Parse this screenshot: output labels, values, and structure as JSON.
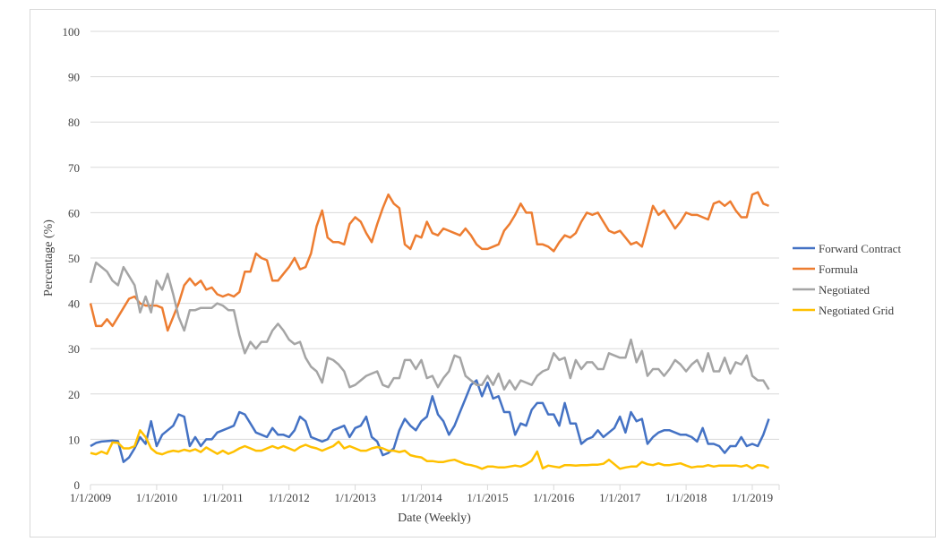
{
  "chart_data": {
    "type": "line",
    "xlabel": "Date (Weekly)",
    "ylabel": "Percentage (%)",
    "ylim": [
      0,
      100
    ],
    "yticks": [
      "0",
      "10",
      "20",
      "30",
      "40",
      "50",
      "60",
      "70",
      "80",
      "90",
      "100"
    ],
    "xticks": [
      "1/1/2009",
      "1/1/2010",
      "1/1/2011",
      "1/1/2012",
      "1/1/2013",
      "1/1/2014",
      "1/1/2015",
      "1/1/2016",
      "1/1/2017",
      "1/1/2018",
      "1/1/2019"
    ],
    "x_start": "2009-01",
    "x_step": "monthly (approx.)",
    "grid": true,
    "legend_position": "right",
    "series": [
      {
        "name": "Forward Contract",
        "color": "#4472C4",
        "values": [
          8.5,
          9.2,
          9.5,
          9.6,
          9.7,
          9.6,
          5,
          6,
          8,
          10.5,
          9,
          14,
          8.5,
          11,
          12,
          13,
          15.5,
          15,
          8.5,
          10.5,
          8.5,
          10,
          10,
          11.5,
          12,
          12.5,
          13,
          16,
          15.5,
          13.5,
          11.5,
          11,
          10.5,
          12.5,
          11,
          11,
          10.5,
          12,
          15,
          14,
          10.5,
          10,
          9.5,
          10,
          12,
          12.5,
          13,
          10.5,
          12.5,
          13,
          15,
          10.5,
          9.5,
          6.5,
          7,
          8,
          12,
          14.5,
          13,
          12,
          14,
          15,
          19.5,
          15.5,
          14,
          11,
          13,
          16,
          19,
          22,
          23,
          19.5,
          22.5,
          19,
          19.5,
          16,
          16,
          11,
          13.5,
          13,
          16.5,
          18,
          18,
          15.5,
          15.5,
          13,
          18,
          13.5,
          13.5,
          9,
          10,
          10.5,
          12,
          10.5,
          11.5,
          12.5,
          15,
          11.5,
          16,
          14,
          14.5,
          9,
          10.5,
          11.5,
          12,
          12,
          11.5,
          11,
          11,
          10.5,
          9.5,
          12.5,
          9,
          9,
          8.5,
          7,
          8.5,
          8.5,
          10.5,
          8.5,
          9,
          8.5,
          11,
          14.5
        ]
      },
      {
        "name": "Formula",
        "color": "#ED7D31",
        "values": [
          40,
          35,
          35,
          36.5,
          35,
          37,
          39,
          41,
          41.5,
          40,
          39.5,
          39.5,
          39.5,
          39,
          34,
          37,
          40,
          44,
          45.5,
          44,
          45,
          43,
          43.5,
          42,
          41.5,
          42,
          41.5,
          42.5,
          47,
          47,
          51,
          50,
          49.5,
          45,
          45,
          46.5,
          48,
          50,
          47.5,
          48,
          51,
          57,
          60.5,
          54.5,
          53.5,
          53.5,
          53,
          57.5,
          59,
          58,
          55.5,
          53.5,
          57.5,
          61,
          64,
          62,
          61,
          53,
          52,
          55,
          54.5,
          58,
          55.5,
          55,
          56.5,
          56,
          55.5,
          55,
          56.5,
          55,
          53,
          52,
          52,
          52.5,
          53,
          56,
          57.5,
          59.5,
          62,
          60,
          60,
          53,
          53,
          52.5,
          51.5,
          53.5,
          55,
          54.5,
          55.5,
          58,
          60,
          59.5,
          60,
          58,
          56,
          55.5,
          56,
          54.5,
          53,
          53.5,
          52.5,
          57,
          61.5,
          59.5,
          60.5,
          58.5,
          56.5,
          58,
          60,
          59.5,
          59.5,
          59,
          58.5,
          62,
          62.5,
          61.5,
          62.5,
          60.5,
          59,
          59,
          64,
          64.5,
          62,
          61.5
        ]
      },
      {
        "name": "Negotiated",
        "color": "#A5A5A5",
        "values": [
          44.5,
          49,
          48,
          47,
          45,
          44,
          48,
          46,
          44,
          38,
          41.5,
          38,
          45,
          43,
          46.5,
          42,
          37,
          34,
          38.5,
          38.5,
          39,
          39,
          39,
          40,
          39.5,
          38.5,
          38.5,
          33,
          29,
          31.5,
          30,
          31.5,
          31.5,
          34,
          35.5,
          34,
          32,
          31,
          31.5,
          28,
          26,
          25,
          22.5,
          28,
          27.5,
          26.5,
          25,
          21.5,
          22,
          23,
          24,
          24.5,
          25,
          22,
          21.5,
          23.5,
          23.5,
          27.5,
          27.5,
          25.5,
          27.5,
          23.5,
          24,
          21.5,
          23.5,
          25,
          28.5,
          28,
          24,
          23,
          22,
          22,
          24,
          22,
          24.5,
          21,
          23,
          21,
          23,
          22.5,
          22,
          24,
          25,
          25.5,
          29,
          27.5,
          28,
          23.5,
          27.5,
          25.5,
          27,
          27,
          25.5,
          25.5,
          29,
          28.5,
          28,
          28,
          32,
          27,
          29.5,
          24,
          25.5,
          25.5,
          24,
          25.5,
          27.5,
          26.5,
          25,
          26.5,
          27.5,
          25,
          29,
          25,
          25,
          28,
          24.5,
          27,
          26.5,
          28.5,
          24,
          23,
          23,
          21
        ]
      },
      {
        "name": "Negotiated Grid",
        "color": "#FFC000",
        "values": [
          7,
          6.7,
          7.3,
          6.8,
          9.3,
          9.2,
          8,
          8,
          8.5,
          12,
          10.5,
          8,
          7,
          6.7,
          7.2,
          7.5,
          7.3,
          7.7,
          7.4,
          7.8,
          7.2,
          8.2,
          7.5,
          6.8,
          7.5,
          6.8,
          7.3,
          8,
          8.5,
          8,
          7.5,
          7.5,
          8,
          8.5,
          8,
          8.5,
          8,
          7.5,
          8.3,
          8.8,
          8.3,
          8,
          7.5,
          8,
          8.5,
          9.5,
          8,
          8.5,
          8,
          7.5,
          7.5,
          8,
          8.3,
          8,
          7.5,
          7.5,
          7.2,
          7.5,
          6.5,
          6.2,
          6,
          5.2,
          5.2,
          5,
          5,
          5.3,
          5.5,
          5,
          4.5,
          4.3,
          4,
          3.5,
          4,
          4,
          3.8,
          3.8,
          4,
          4.2,
          4,
          4.5,
          5.3,
          7.3,
          3.6,
          4.2,
          4,
          3.8,
          4.3,
          4.3,
          4.2,
          4.3,
          4.3,
          4.4,
          4.4,
          4.6,
          5.5,
          4.5,
          3.5,
          3.8,
          4,
          4,
          5,
          4.5,
          4.3,
          4.7,
          4.3,
          4.3,
          4.5,
          4.7,
          4.2,
          3.8,
          4,
          4,
          4.3,
          4,
          4.2,
          4.2,
          4.2,
          4.2,
          4,
          4.3,
          3.6,
          4.3,
          4.2,
          3.7
        ]
      }
    ]
  }
}
